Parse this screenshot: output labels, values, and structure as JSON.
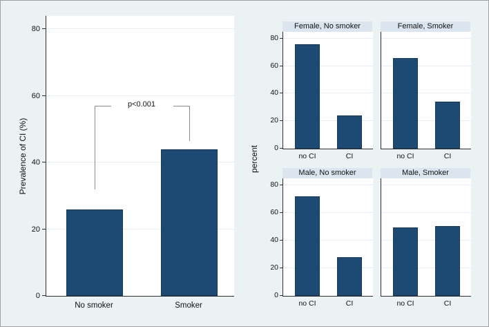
{
  "colors": {
    "background": "#eaf2f3",
    "bar_fill": "#1c4a73",
    "bar_edge": "#16395a",
    "panel_header_band": "#dbe5f0",
    "gridline": "#e4edf4",
    "axis_line": "#2e2e2e",
    "bracket_line": "#8c8c8c",
    "text": "#111111"
  },
  "chart_data": [
    {
      "id": "prevalence-by-smoking",
      "type": "bar",
      "title": "",
      "ylabel": "Prevalence of CI (%)",
      "xlabel": "",
      "categories": [
        "No smoker",
        "Smoker"
      ],
      "values": [
        26,
        44
      ],
      "ylim": [
        0,
        84
      ],
      "yticks": [
        0,
        20,
        40,
        60,
        80
      ],
      "grid": true,
      "legend": "none",
      "annotation": {
        "text": "p<0.001",
        "bracket_level": 57,
        "left_drop_to": 32,
        "right_drop_to": 46.5
      }
    },
    {
      "id": "percent-ci-by-sex-smoking",
      "type": "bar",
      "ylabel": "percent",
      "xlabel": "",
      "categories": [
        "no CI",
        "CI"
      ],
      "ylim": [
        0,
        85
      ],
      "yticks": [
        0,
        20,
        40,
        60,
        80
      ],
      "grid": true,
      "legend": "none",
      "panels": [
        {
          "title": "Female, No smoker",
          "values": [
            76,
            24
          ]
        },
        {
          "title": "Female, Smoker",
          "values": [
            66,
            34
          ]
        },
        {
          "title": "Male, No smoker",
          "values": [
            72,
            28
          ]
        },
        {
          "title": "Male, Smoker",
          "values": [
            49.5,
            50.5
          ]
        }
      ]
    }
  ]
}
